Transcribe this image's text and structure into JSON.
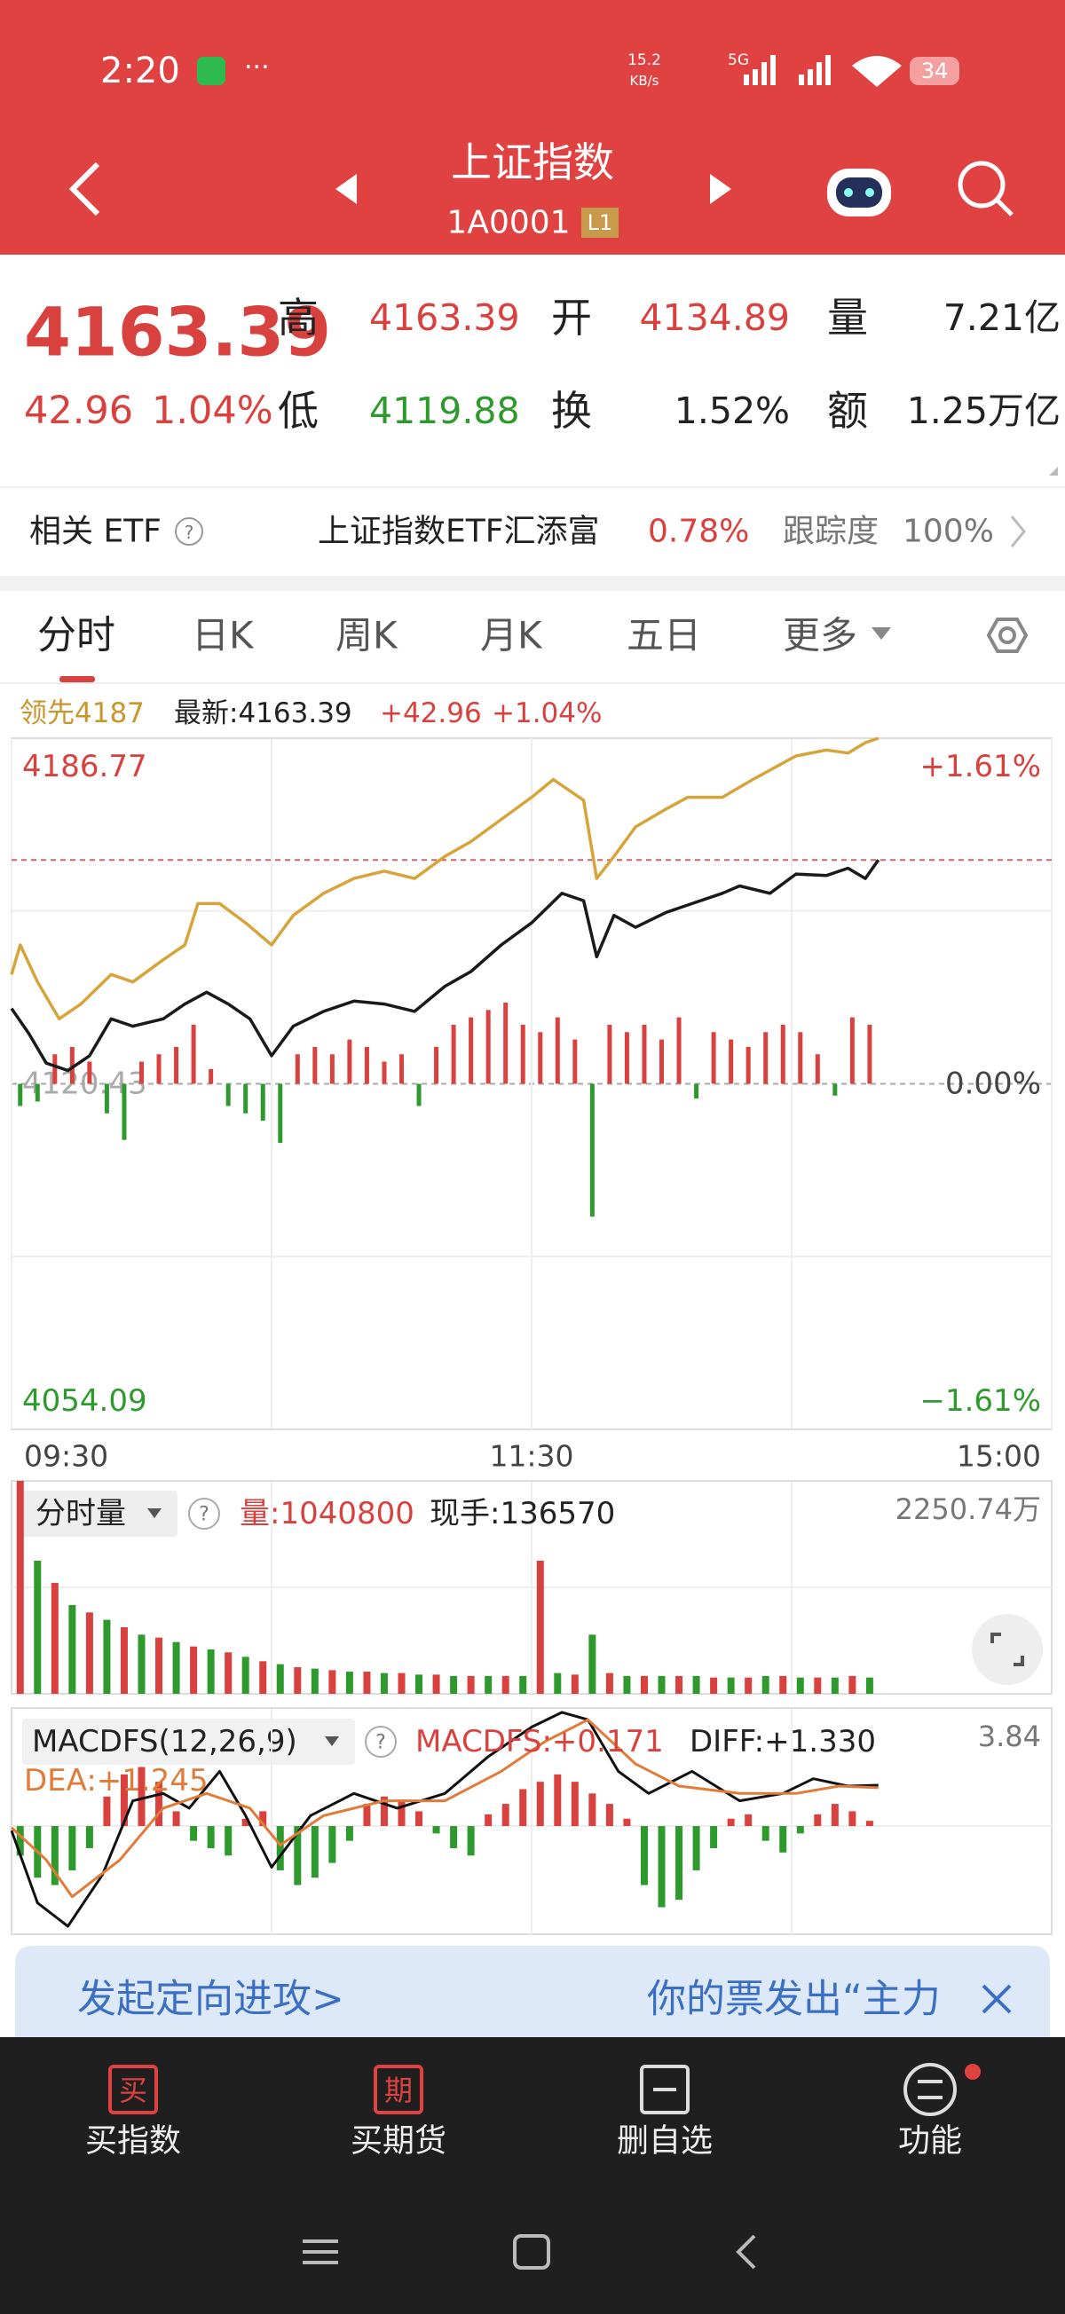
{
  "status_bar": {
    "time": "2:20",
    "net_speed": "15.2",
    "net_unit": "KB/s",
    "signal": "5G",
    "battery": "34"
  },
  "header": {
    "title": "上证指数",
    "code": "1A0001",
    "badge": "L1"
  },
  "quote": {
    "price": "4163.39",
    "change": "42.96",
    "change_pct": "1.04%",
    "fields": [
      {
        "label": "高",
        "value": "4163.39"
      },
      {
        "label": "开",
        "value": "4134.89"
      },
      {
        "label": "量",
        "value": "7.21亿"
      },
      {
        "label": "低",
        "value": "4119.88"
      },
      {
        "label": "换",
        "value": "1.52%"
      },
      {
        "label": "额",
        "value": "1.25万亿"
      }
    ]
  },
  "etf": {
    "label": "相关 ETF",
    "name": "上证指数ETF汇添富",
    "change": "0.78%",
    "tracking_label": "跟踪度",
    "tracking": "100%"
  },
  "tabs": [
    "分时",
    "日K",
    "周K",
    "月K",
    "五日",
    "更多"
  ],
  "legend": {
    "leader": "领先4187",
    "latest": "最新:4163.39",
    "change": "+42.96",
    "change_pct": "+1.04%"
  },
  "chart_data": [
    {
      "type": "line",
      "xlim": [
        0,
        240
      ],
      "xticks": [
        {
          "value": 0,
          "label": "09:30"
        },
        {
          "value": 120,
          "label": "11:30"
        },
        {
          "value": 240,
          "label": "15:00"
        }
      ],
      "ylim": [
        4054.09,
        4186.77
      ],
      "yticks": [
        4186.77,
        4120.43,
        4054.09
      ],
      "y2ticks": [
        {
          "value": 4186.77,
          "label": "+1.61%"
        },
        {
          "value": 4120.43,
          "label": "0.00%"
        },
        {
          "value": 4054.09,
          "label": "−1.61%"
        }
      ],
      "current_line": 4163.39,
      "series": [
        {
          "color": "#d6a43a",
          "x": [
            0,
            2,
            6,
            11,
            16,
            23,
            28,
            35,
            40,
            43,
            48,
            54,
            60,
            65,
            72,
            79,
            86,
            93,
            100,
            106,
            113,
            120,
            125,
            132,
            135,
            139,
            144,
            151,
            156,
            164,
            171,
            181,
            188,
            193,
            197,
            200
          ],
          "values": [
            4141.41,
            4147.08,
            4139.99,
            4132.9,
            4135.74,
            4141.41,
            4139.99,
            4144.24,
            4147.08,
            4155.02,
            4155.02,
            4151.33,
            4147.08,
            4152.75,
            4157.0,
            4159.84,
            4161.25,
            4159.84,
            4164.09,
            4166.92,
            4171.18,
            4175.43,
            4178.83,
            4174.86,
            4159.84,
            4164.09,
            4169.76,
            4173.16,
            4175.43,
            4175.43,
            4178.83,
            4183.37,
            4184.5,
            4183.93,
            4185.92,
            4186.77
          ]
        },
        {
          "color": "#1a1a1a",
          "x": [
            0,
            4,
            8,
            13,
            18,
            23,
            28,
            35,
            40,
            45,
            50,
            55,
            60,
            65,
            72,
            79,
            86,
            93,
            100,
            106,
            113,
            120,
            127,
            132,
            135,
            139,
            144,
            151,
            157,
            164,
            168,
            175,
            181,
            188,
            193,
            197,
            200
          ],
          "values": [
            4134.89,
            4130.07,
            4124.4,
            4122.98,
            4125.82,
            4132.9,
            4131.49,
            4132.9,
            4135.74,
            4138.01,
            4135.74,
            4132.9,
            4125.82,
            4131.49,
            4134.32,
            4136.31,
            4135.74,
            4134.32,
            4139.14,
            4141.98,
            4147.08,
            4151.33,
            4157.0,
            4155.58,
            4144.81,
            4152.75,
            4150.48,
            4153.32,
            4155.02,
            4157.0,
            4158.42,
            4157.0,
            4160.69,
            4160.4,
            4161.82,
            4159.84,
            4163.39
          ]
        }
      ],
      "bars": {
        "up_color": "#d9413f",
        "down_color": "#2e9a2e",
        "values": [
          -15,
          -12,
          20,
          25,
          15,
          -20,
          -38,
          15,
          20,
          25,
          40,
          10,
          -15,
          -20,
          -25,
          -40,
          20,
          25,
          20,
          30,
          25,
          15,
          20,
          -15,
          25,
          40,
          45,
          50,
          55,
          40,
          35,
          45,
          30,
          -90,
          40,
          35,
          40,
          30,
          45,
          -10,
          35,
          30,
          25,
          35,
          40,
          35,
          20,
          -8,
          45,
          40
        ]
      }
    },
    {
      "type": "bar",
      "indicator": "分时量",
      "xlim": [
        0,
        240
      ],
      "legend": [
        {
          "text": "量:1040800",
          "color": "#d9413f"
        },
        {
          "text": "现手:136570",
          "color": "#222"
        }
      ],
      "ylim": [
        0,
        2250.74
      ],
      "yticks": [
        {
          "value": 2250.74,
          "label": "2250.74万"
        }
      ],
      "colors": [
        "#d9413f",
        "#2e9a2e"
      ],
      "values": [
        2250.74,
        1407,
        1172,
        938,
        860,
        782,
        703,
        625,
        594,
        547,
        500,
        469,
        438,
        391,
        344,
        313,
        281,
        266,
        250,
        234,
        234,
        219,
        219,
        203,
        203,
        188,
        188,
        188,
        188,
        188,
        1407,
        219,
        203,
        625,
        219,
        188,
        188,
        188,
        188,
        188,
        172,
        172,
        172,
        188,
        188,
        172,
        172,
        172,
        188,
        172
      ]
    },
    {
      "type": "macd",
      "indicator": "MACDFS(12,26,9)",
      "xlim": [
        0,
        240
      ],
      "legend": [
        {
          "text": "MACDFS:+0.171",
          "color": "#d9413f"
        },
        {
          "text": "DIFF:+1.330",
          "color": "#222"
        },
        {
          "text": "DEA:+1.245",
          "color": "#e07b39"
        }
      ],
      "ylim": [
        -3.52,
        3.84
      ],
      "yticks": [
        3.84
      ],
      "colors": [
        "#d9413f",
        "#2e9a2e"
      ],
      "values": [
        -0.96,
        -1.68,
        -1.92,
        -1.44,
        -0.72,
        0.96,
        1.68,
        1.92,
        1.44,
        0.48,
        -0.48,
        -0.72,
        -0.96,
        0.24,
        0.48,
        -1.44,
        -1.92,
        -1.68,
        -1.2,
        -0.48,
        0.72,
        0.96,
        0.86,
        0.48,
        -0.24,
        -0.72,
        -0.96,
        0.38,
        0.72,
        1.2,
        1.44,
        1.68,
        1.44,
        1.06,
        0.72,
        0.24,
        -1.92,
        -2.64,
        -2.4,
        -1.44,
        -0.72,
        0.24,
        0.38,
        -0.48,
        -0.86,
        -0.24,
        0.38,
        0.72,
        0.48,
        0.171
      ],
      "series": [
        {
          "color": "#111111",
          "x": [
            0,
            6,
            13,
            21,
            28,
            35,
            41,
            48,
            54,
            60,
            69,
            79,
            89,
            100,
            110,
            120,
            127,
            133,
            140,
            147,
            157,
            168,
            178,
            185,
            193,
            200
          ],
          "values": [
            -0.15,
            -2.5,
            -3.26,
            -1.58,
            0.82,
            1.06,
            0.58,
            1.78,
            0.34,
            -1.34,
            0.34,
            1.06,
            0.58,
            1.06,
            2.26,
            3.22,
            3.7,
            3.46,
            1.78,
            1.06,
            1.78,
            0.82,
            1.06,
            1.54,
            1.3,
            1.33
          ]
        },
        {
          "color": "#e07b39",
          "x": [
            0,
            8,
            14,
            25,
            35,
            45,
            55,
            62,
            72,
            86,
            100,
            113,
            123,
            133,
            144,
            154,
            168,
            181,
            191,
            200
          ],
          "values": [
            -0.05,
            -1.1,
            -2.3,
            -1.1,
            0.58,
            1.06,
            0.58,
            -0.62,
            0.34,
            0.82,
            0.82,
            1.78,
            2.74,
            3.46,
            2.02,
            1.3,
            1.06,
            1.06,
            1.3,
            1.245
          ]
        }
      ]
    }
  ],
  "banner": {
    "left": "发起定向进攻>",
    "right": "你的票发出“主力"
  },
  "nav": [
    {
      "icon": "买",
      "label": "买指数"
    },
    {
      "icon": "期",
      "label": "买期货"
    },
    {
      "label": "删自选"
    },
    {
      "label": "功能"
    }
  ]
}
